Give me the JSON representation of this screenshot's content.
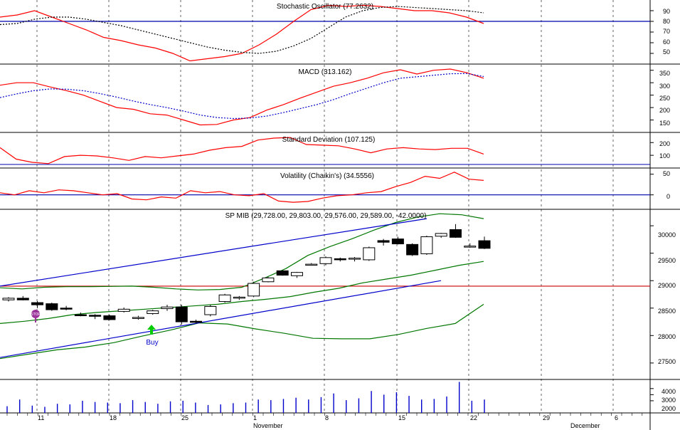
{
  "colors": {
    "background": "#ffffff",
    "grid": "#000000",
    "red_line": "#ff0000",
    "signal_line": "#000000",
    "macd_signal": "#0000cc",
    "bollinger": "#007700",
    "trend_channel": "#0000cc",
    "horizontal_level": "#cc0000",
    "volume": "#0000cc",
    "buy_arrow": "#00cc00",
    "stop_marker": "#993399"
  },
  "panels": {
    "stochastic": {
      "title": "Stochastic Oscillator (77.2632)",
      "ticks": [
        "90",
        "80",
        "70",
        "60",
        "50"
      ]
    },
    "macd": {
      "title": "MACD (313.162)",
      "ticks": [
        "350",
        "300",
        "250",
        "200",
        "150"
      ]
    },
    "stddev": {
      "title": "Standard Deviation (107.125)",
      "ticks": [
        "200",
        "100"
      ]
    },
    "volatility": {
      "title": "Volatility (Chaikin's) (34.5556)",
      "ticks": [
        "50",
        "0"
      ]
    },
    "price": {
      "title": "SP MIB (29,728.00, 29,803.00, 29,576.00, 29,589.00, -42.0000)",
      "ticks": [
        "30000",
        "29500",
        "29000",
        "28500",
        "28000",
        "27500"
      ]
    },
    "volume": {
      "ticks": [
        "4000",
        "3000",
        "2000"
      ]
    }
  },
  "x_axis": {
    "day_ticks": [
      "11",
      "18",
      "25",
      "1",
      "8",
      "15",
      "22",
      "29",
      "6"
    ],
    "months": [
      "November",
      "December"
    ]
  },
  "annotations": {
    "buy_label": "Buy",
    "stop_label": "STOP"
  },
  "chart_data": [
    {
      "type": "line",
      "title": "Stochastic Oscillator (77.2632)",
      "ylim": [
        40,
        100
      ],
      "reference_line": 80,
      "series": [
        {
          "values": [
            84,
            86,
            90,
            84,
            78,
            72,
            65,
            62,
            58,
            55,
            50,
            43,
            45,
            47,
            50,
            58,
            68,
            80,
            91,
            95,
            94,
            95,
            94,
            92,
            90,
            90,
            88,
            84,
            78
          ]
        },
        {
          "values": [
            77,
            78,
            82,
            84,
            84,
            82,
            79,
            76,
            72,
            68,
            64,
            60,
            56,
            53,
            51,
            50,
            52,
            57,
            64,
            74,
            84,
            90,
            93,
            94,
            93,
            92,
            91,
            90,
            88
          ]
        }
      ]
    },
    {
      "type": "line",
      "title": "MACD (313.162)",
      "ylim": [
        100,
        375
      ],
      "series": [
        {
          "values": [
            290,
            300,
            300,
            283,
            268,
            250,
            225,
            200,
            193,
            175,
            170,
            150,
            130,
            132,
            150,
            160,
            190,
            212,
            238,
            262,
            286,
            300,
            318,
            340,
            352,
            335,
            350,
            355,
            340,
            318
          ]
        },
        {
          "values": [
            240,
            255,
            268,
            275,
            274,
            268,
            256,
            242,
            226,
            212,
            200,
            186,
            170,
            160,
            156,
            158,
            166,
            180,
            196,
            212,
            232,
            256,
            278,
            300,
            318,
            324,
            330,
            336,
            337,
            325
          ]
        }
      ]
    },
    {
      "type": "line",
      "title": "Standard Deviation (107.125)",
      "ylim": [
        0,
        280
      ],
      "series": [
        {
          "values": [
            160,
            70,
            45,
            35,
            90,
            100,
            95,
            80,
            60,
            90,
            80,
            95,
            110,
            140,
            160,
            170,
            220,
            235,
            240,
            185,
            180,
            175,
            150,
            120,
            150,
            160,
            150,
            145,
            155,
            155,
            110
          ]
        }
      ]
    },
    {
      "type": "line",
      "title": "Volatility (Chaikin's) (34.5556)",
      "ylim": [
        -35,
        65
      ],
      "series": [
        {
          "values": [
            5,
            0,
            10,
            5,
            12,
            10,
            5,
            0,
            3,
            -10,
            -12,
            -5,
            -8,
            10,
            5,
            8,
            0,
            -2,
            3,
            -15,
            -18,
            -16,
            -8,
            -2,
            0,
            5,
            8,
            20,
            30,
            45,
            40,
            55,
            38,
            35
          ]
        }
      ]
    },
    {
      "type": "candlestick",
      "title": "SP MIB (29,728.00, 29,803.00, 29,576.00, 29,589.00, -42.0000)",
      "ylim": [
        27200,
        30300
      ],
      "reference_line": 28900,
      "series": [
        {
          "name": "",
          "values": [
            [
              28650,
              28700,
              28620,
              28680
            ],
            [
              28680,
              28720,
              28640,
              28650
            ],
            [
              28600,
              28630,
              28500,
              28560
            ],
            [
              28580,
              28600,
              28450,
              28470
            ],
            [
              28500,
              28540,
              28460,
              28490
            ],
            [
              28380,
              28420,
              28350,
              28370
            ],
            [
              28370,
              28390,
              28300,
              28360
            ],
            [
              28360,
              28380,
              28280,
              28290
            ],
            [
              28440,
              28510,
              28420,
              28480
            ],
            [
              28320,
              28360,
              28290,
              28330
            ],
            [
              28400,
              28470,
              28380,
              28450
            ],
            [
              28490,
              28560,
              28450,
              28520
            ],
            [
              28520,
              28560,
              28200,
              28250
            ],
            [
              28260,
              28290,
              28220,
              28250
            ],
            [
              28380,
              28560,
              28350,
              28530
            ],
            [
              28620,
              28760,
              28600,
              28740
            ],
            [
              28700,
              28720,
              28650,
              28700
            ],
            [
              28720,
              28980,
              28700,
              28950
            ],
            [
              28980,
              29070,
              28970,
              29050
            ],
            [
              29180,
              29190,
              29090,
              29100
            ],
            [
              29090,
              29160,
              29050,
              29150
            ],
            [
              29300,
              29320,
              29280,
              29300
            ],
            [
              29310,
              29440,
              29280,
              29420
            ],
            [
              29400,
              29420,
              29350,
              29380
            ],
            [
              29400,
              29430,
              29350,
              29410
            ],
            [
              29380,
              29620,
              29360,
              29600
            ],
            [
              29730,
              29760,
              29640,
              29700
            ],
            [
              29760,
              29800,
              29660,
              29670
            ],
            [
              29660,
              29680,
              29450,
              29470
            ],
            [
              29490,
              29820,
              29470,
              29800
            ],
            [
              29810,
              29870,
              29780,
              29860
            ],
            [
              29930,
              30030,
              29780,
              29790
            ],
            [
              29630,
              29680,
              29600,
              29630
            ],
            [
              29728,
              29803,
              29576,
              29589
            ]
          ]
        }
      ],
      "overlays": [
        {
          "values": [
            28870,
            28850,
            28880,
            28890,
            28890,
            28895,
            28900,
            28880,
            28850,
            28830,
            28840,
            28880,
            29040,
            29220,
            29460,
            29620,
            29760,
            29920,
            30060,
            30160,
            30220,
            30200,
            30130
          ]
        },
        {
          "values": [
            28220,
            28260,
            28310,
            28380,
            28420,
            28450,
            28480,
            28510,
            28540,
            28570,
            28620,
            28660,
            28710,
            28790,
            28860,
            28960,
            29030,
            29100,
            29190,
            29280,
            29350
          ]
        },
        {
          "values": [
            27580,
            27660,
            27740,
            27790,
            27870,
            27990,
            28100,
            28230,
            28210,
            28120,
            28040,
            27950,
            27940,
            27940,
            28020,
            28130,
            28220,
            28570
          ]
        },
        {
          "values": [
            27600,
            29000
          ]
        },
        {
          "values": [
            28900,
            30130
          ]
        }
      ]
    },
    {
      "type": "bar",
      "ylim": [
        0,
        5500
      ],
      "values": [
        1100,
        2200,
        1200,
        1000,
        1500,
        1400,
        2000,
        1800,
        1700,
        1600,
        2100,
        1800,
        1500,
        1900,
        2000,
        1700,
        1300,
        1400,
        1600,
        1700,
        2200,
        2100,
        2300,
        2500,
        2200,
        2600,
        3200,
        2100,
        2400,
        3600,
        3000,
        3400,
        2800,
        2200,
        2300,
        2700,
        5100,
        2000,
        2200
      ]
    }
  ]
}
